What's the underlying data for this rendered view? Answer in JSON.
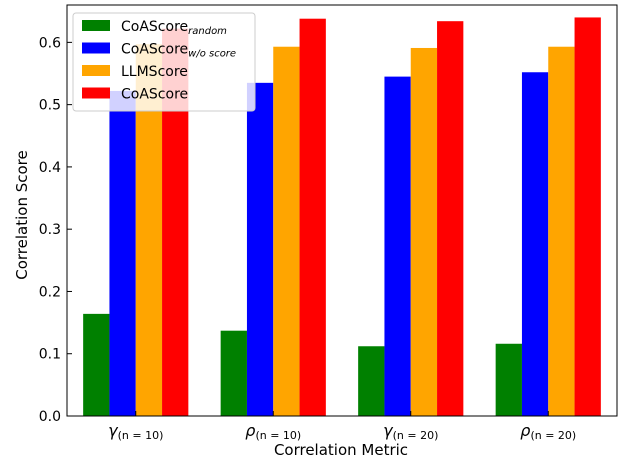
{
  "chart_data": {
    "type": "bar",
    "xlabel": "Correlation Metric",
    "ylabel": "Correlation Score",
    "ylim": [
      0,
      0.66
    ],
    "yticks": [
      "0.0",
      "0.1",
      "0.2",
      "0.3",
      "0.4",
      "0.5",
      "0.6"
    ],
    "categories": [
      {
        "symbol": "γ",
        "subscript": "(n = 10)"
      },
      {
        "symbol": "ρ",
        "subscript": "(n = 10)"
      },
      {
        "symbol": "γ",
        "subscript": "(n = 20)"
      },
      {
        "symbol": "ρ",
        "subscript": "(n = 20)"
      }
    ],
    "series": [
      {
        "name": "CoAScore",
        "name_subscript": "random",
        "color": "#008000",
        "values": [
          0.164,
          0.137,
          0.112,
          0.116
        ]
      },
      {
        "name": "CoAScore",
        "name_subscript": "w/o score",
        "color": "#0000ff",
        "values": [
          0.522,
          0.535,
          0.545,
          0.552
        ]
      },
      {
        "name": "LLMScore",
        "name_subscript": "",
        "color": "#ffa500",
        "values": [
          0.597,
          0.593,
          0.591,
          0.593
        ]
      },
      {
        "name": "CoAScore",
        "name_subscript": "",
        "color": "#ff0000",
        "values": [
          0.622,
          0.638,
          0.634,
          0.64
        ]
      }
    ],
    "legend_position": "top-left",
    "grid": false
  }
}
